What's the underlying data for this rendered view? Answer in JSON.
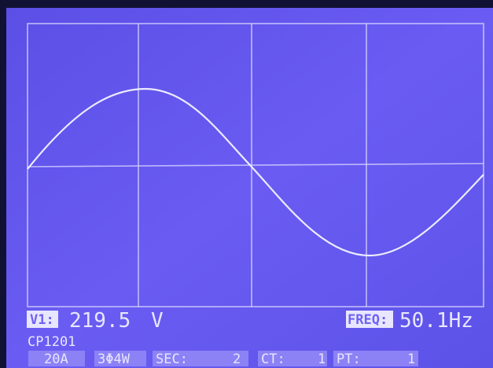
{
  "readout": {
    "voltage_label": "V1:",
    "voltage": "219.5",
    "voltage_unit": "V",
    "freq_label": "FREQ:",
    "freq": "50.1Hz"
  },
  "status": {
    "probe": "CP1201",
    "range": "20A",
    "wiring": "3Φ4W",
    "sec_label": "SEC:",
    "sec": "2",
    "ct_label": "CT:",
    "ct": "1",
    "pt_label": "PT:",
    "pt": "1"
  }
}
